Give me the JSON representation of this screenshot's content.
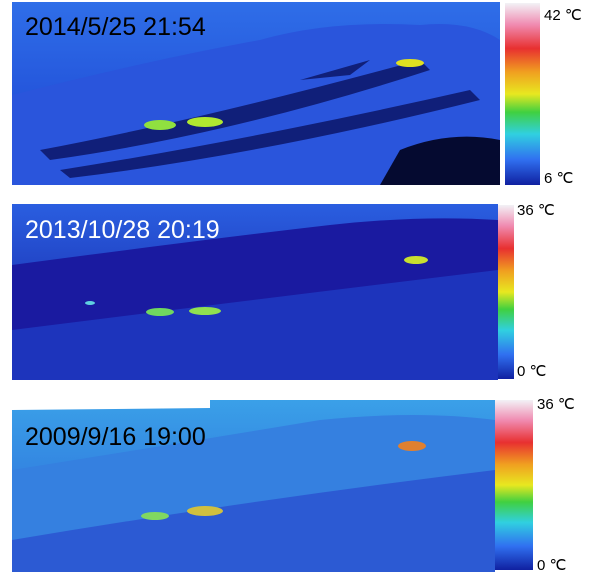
{
  "panels": [
    {
      "timestamp": "2014/5/25  21:54",
      "scale_max": "42 ℃",
      "scale_min": "6 ℃"
    },
    {
      "timestamp": "2013/10/28  20:19",
      "scale_max": "36 ℃",
      "scale_min": "0 ℃"
    },
    {
      "timestamp": "2009/9/16  19:00",
      "scale_max": "36 ℃",
      "scale_min": "0 ℃"
    }
  ]
}
